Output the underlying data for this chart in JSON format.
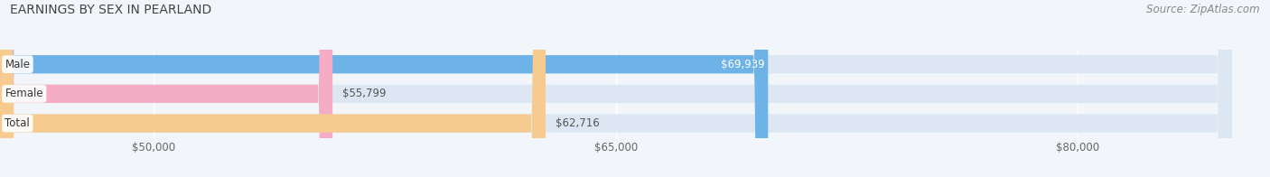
{
  "title": "EARNINGS BY SEX IN PEARLAND",
  "source": "Source: ZipAtlas.com",
  "categories": [
    "Male",
    "Female",
    "Total"
  ],
  "values": [
    69939,
    55799,
    62716
  ],
  "bar_colors": [
    "#6db3e8",
    "#f5adc6",
    "#f7ca8f"
  ],
  "value_label_inside": [
    true,
    false,
    false
  ],
  "value_label_colors": [
    "#ffffff",
    "#555555",
    "#555555"
  ],
  "background_color": "#f2f5fa",
  "bar_bg_color": "#dde7f3",
  "xmin": 45000,
  "xmax": 85000,
  "xticks": [
    50000,
    65000,
    80000
  ],
  "xtick_labels": [
    "$50,000",
    "$65,000",
    "$80,000"
  ],
  "title_fontsize": 10,
  "source_fontsize": 8.5,
  "label_fontsize": 8.5,
  "category_fontsize": 8.5,
  "bar_height": 0.62,
  "bar_gap": 0.18
}
